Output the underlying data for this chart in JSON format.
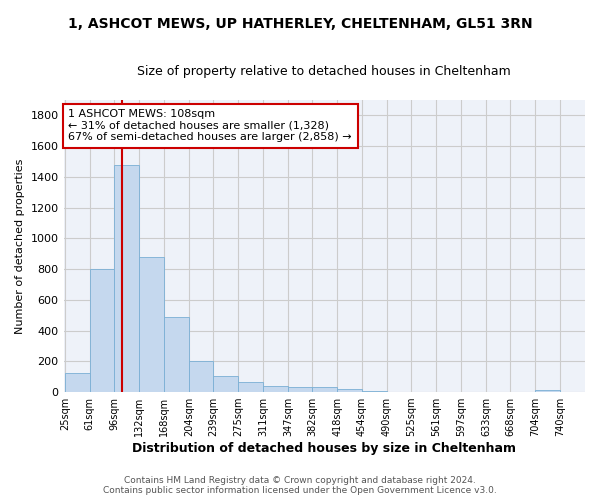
{
  "title1": "1, ASHCOT MEWS, UP HATHERLEY, CHELTENHAM, GL51 3RN",
  "title2": "Size of property relative to detached houses in Cheltenham",
  "xlabel": "Distribution of detached houses by size in Cheltenham",
  "ylabel": "Number of detached properties",
  "footer1": "Contains HM Land Registry data © Crown copyright and database right 2024.",
  "footer2": "Contains public sector information licensed under the Open Government Licence v3.0.",
  "annotation_title": "1 ASHCOT MEWS: 108sqm",
  "annotation_line1": "← 31% of detached houses are smaller (1,328)",
  "annotation_line2": "67% of semi-detached houses are larger (2,858) →",
  "property_size": 108,
  "bar_edges": [
    25,
    61,
    96,
    132,
    168,
    204,
    239,
    275,
    311,
    347,
    382,
    418,
    454,
    490,
    525,
    561,
    597,
    633,
    668,
    704,
    740
  ],
  "bar_heights": [
    125,
    800,
    1480,
    880,
    490,
    205,
    105,
    65,
    42,
    35,
    30,
    18,
    10,
    3,
    2,
    2,
    1,
    1,
    0,
    15
  ],
  "bar_color": "#c5d8ee",
  "bar_edgecolor": "#7aafd4",
  "vline_color": "#cc0000",
  "vline_x": 108,
  "ylim": [
    0,
    1900
  ],
  "yticks": [
    0,
    200,
    400,
    600,
    800,
    1000,
    1200,
    1400,
    1600,
    1800
  ],
  "grid_color": "#cccccc",
  "background_color": "#eef2f9",
  "annotation_box_edgecolor": "#cc0000",
  "annotation_box_facecolor": "#ffffff",
  "title1_fontsize": 10,
  "title2_fontsize": 9,
  "xlabel_fontsize": 9,
  "ylabel_fontsize": 8,
  "tick_fontsize": 7,
  "footer_fontsize": 6.5
}
